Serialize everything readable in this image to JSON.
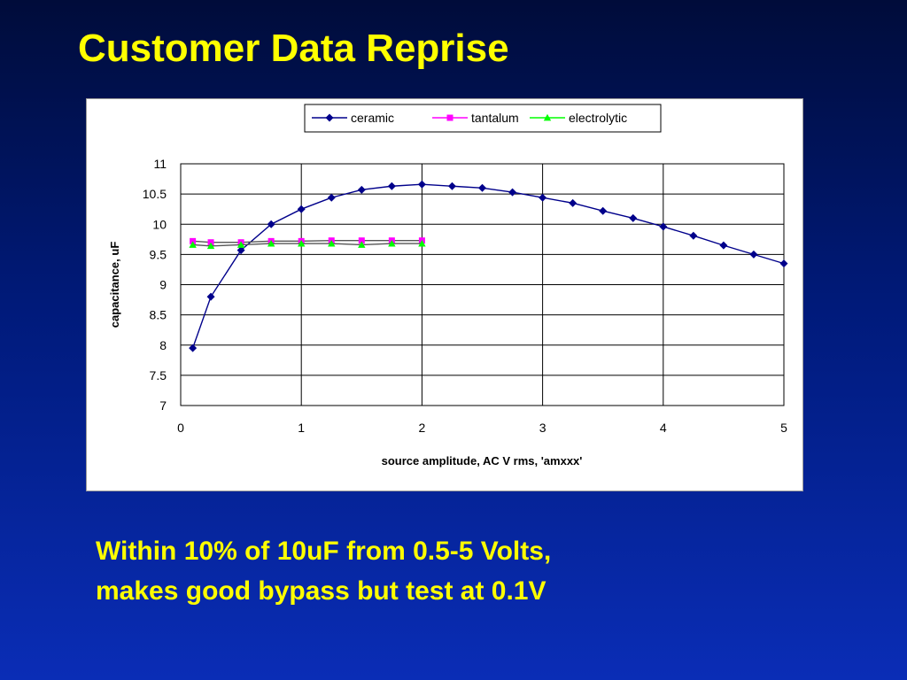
{
  "slide": {
    "title": "Customer Data Reprise",
    "body_lines": [
      "Within 10% of 10uF from 0.5-5 Volts,",
      "makes good bypass but test at 0.1V"
    ]
  },
  "chart_data": {
    "type": "line",
    "title": "",
    "xlabel": "source amplitude, AC V rms, 'amxxx'",
    "ylabel": "capacitance, uF",
    "xlim": [
      0,
      5
    ],
    "ylim": [
      7,
      11
    ],
    "x_ticks": [
      "0",
      "1",
      "2",
      "3",
      "4",
      "5"
    ],
    "y_ticks": [
      "11",
      "10.5",
      "10",
      "9.5",
      "9",
      "8.5",
      "8",
      "7.5",
      "7"
    ],
    "grid": true,
    "legend_position": "top",
    "series": [
      {
        "name": "ceramic",
        "color": "#00008b",
        "marker": "diamond",
        "x": [
          0.1,
          0.25,
          0.5,
          0.75,
          1.0,
          1.25,
          1.5,
          1.75,
          2.0,
          2.25,
          2.5,
          2.75,
          3.0,
          3.25,
          3.5,
          3.75,
          4.0,
          4.25,
          4.5,
          4.75,
          5.0
        ],
        "y": [
          7.95,
          8.8,
          9.57,
          10.0,
          10.25,
          10.44,
          10.57,
          10.63,
          10.66,
          10.63,
          10.6,
          10.53,
          10.44,
          10.35,
          10.22,
          10.1,
          9.96,
          9.81,
          9.65,
          9.5,
          9.35
        ]
      },
      {
        "name": "tantalum",
        "color": "#ff00ff",
        "marker": "square",
        "x": [
          0.1,
          0.25,
          0.5,
          0.75,
          1.0,
          1.25,
          1.5,
          1.75,
          2.0
        ],
        "y": [
          9.72,
          9.7,
          9.7,
          9.72,
          9.72,
          9.73,
          9.73,
          9.73,
          9.73
        ]
      },
      {
        "name": "electrolytic",
        "color": "#00ff00",
        "marker": "triangle",
        "x": [
          0.1,
          0.25,
          0.5,
          0.75,
          1.0,
          1.25,
          1.5,
          1.75,
          2.0
        ],
        "y": [
          9.66,
          9.64,
          9.66,
          9.68,
          9.68,
          9.68,
          9.66,
          9.68,
          9.68
        ]
      }
    ]
  }
}
